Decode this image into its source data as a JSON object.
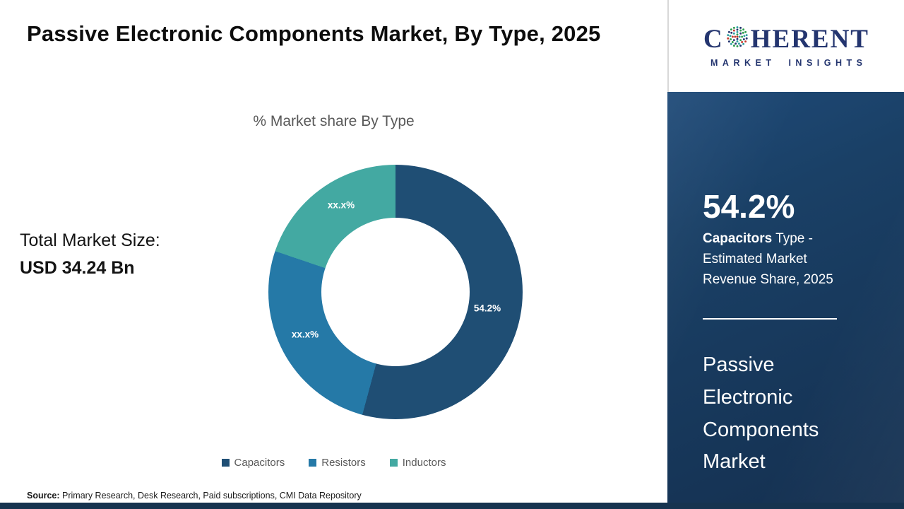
{
  "header": {
    "title": "Passive Electronic Components Market, By Type, 2025"
  },
  "chart_data": {
    "type": "pie",
    "donut": true,
    "title": "% Market share By Type",
    "categories": [
      "Capacitors",
      "Resistors",
      "Inductors"
    ],
    "values": [
      54.2,
      26.0,
      19.8
    ],
    "slice_labels": [
      "54.2%",
      "xx.x%",
      "xx.x%"
    ],
    "colors": [
      "#1f4e74",
      "#2579a7",
      "#43a9a2"
    ],
    "legend_position": "bottom",
    "note": "Resistors and Inductors shares are masked as xx.x% in the image; their numeric values are estimated from arc angles"
  },
  "market_size": {
    "label": "Total Market Size:",
    "value": "USD 34.24 Bn"
  },
  "source": {
    "label": "Source:",
    "text": " Primary Research, Desk Research, Paid subscriptions, CMI Data Repository"
  },
  "sidebar": {
    "logo": {
      "brand_c": "C",
      "brand_rest": "HERENT",
      "tagline": "MARKET INSIGHTS"
    },
    "stat_value": "54.2%",
    "stat_bold": "Capacitors",
    "stat_text": " Type - Estimated Market Revenue Share, 2025",
    "panel_title": "Passive Electronic Components Market",
    "panel_color": "#1a4066",
    "brand_color": "#24356f"
  }
}
